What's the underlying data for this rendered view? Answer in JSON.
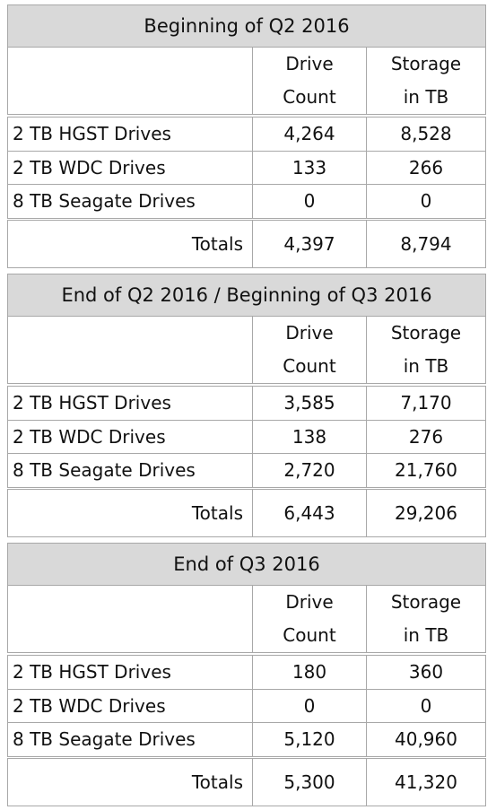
{
  "sections": [
    {
      "title": "Beginning of Q2 2016",
      "header": [
        "Drive Count",
        "Storage in TB"
      ],
      "rows": [
        [
          "2 TB HGST Drives",
          "4,264",
          "8,528"
        ],
        [
          "2 TB WDC Drives",
          "133",
          "266"
        ],
        [
          "8 TB Seagate Drives",
          "0",
          "0"
        ]
      ],
      "totals": [
        "Totals",
        "4,397",
        "8,794"
      ]
    },
    {
      "title": "End of Q2 2016 / Beginning of Q3 2016",
      "header": [
        "Drive Count",
        "Storage in TB"
      ],
      "rows": [
        [
          "2 TB HGST Drives",
          "3,585",
          "7,170"
        ],
        [
          "2 TB WDC Drives",
          "138",
          "276"
        ],
        [
          "8 TB Seagate Drives",
          "2,720",
          "21,760"
        ]
      ],
      "totals": [
        "Totals",
        "6,443",
        "29,206"
      ]
    },
    {
      "title": "End of Q3 2016",
      "header": [
        "Drive Count",
        "Storage in TB"
      ],
      "rows": [
        [
          "2 TB HGST Drives",
          "180",
          "360"
        ],
        [
          "2 TB WDC Drives",
          "0",
          "0"
        ],
        [
          "8 TB Seagate Drives",
          "5,120",
          "40,960"
        ]
      ],
      "totals": [
        "Totals",
        "5,300",
        "41,320"
      ]
    }
  ]
}
